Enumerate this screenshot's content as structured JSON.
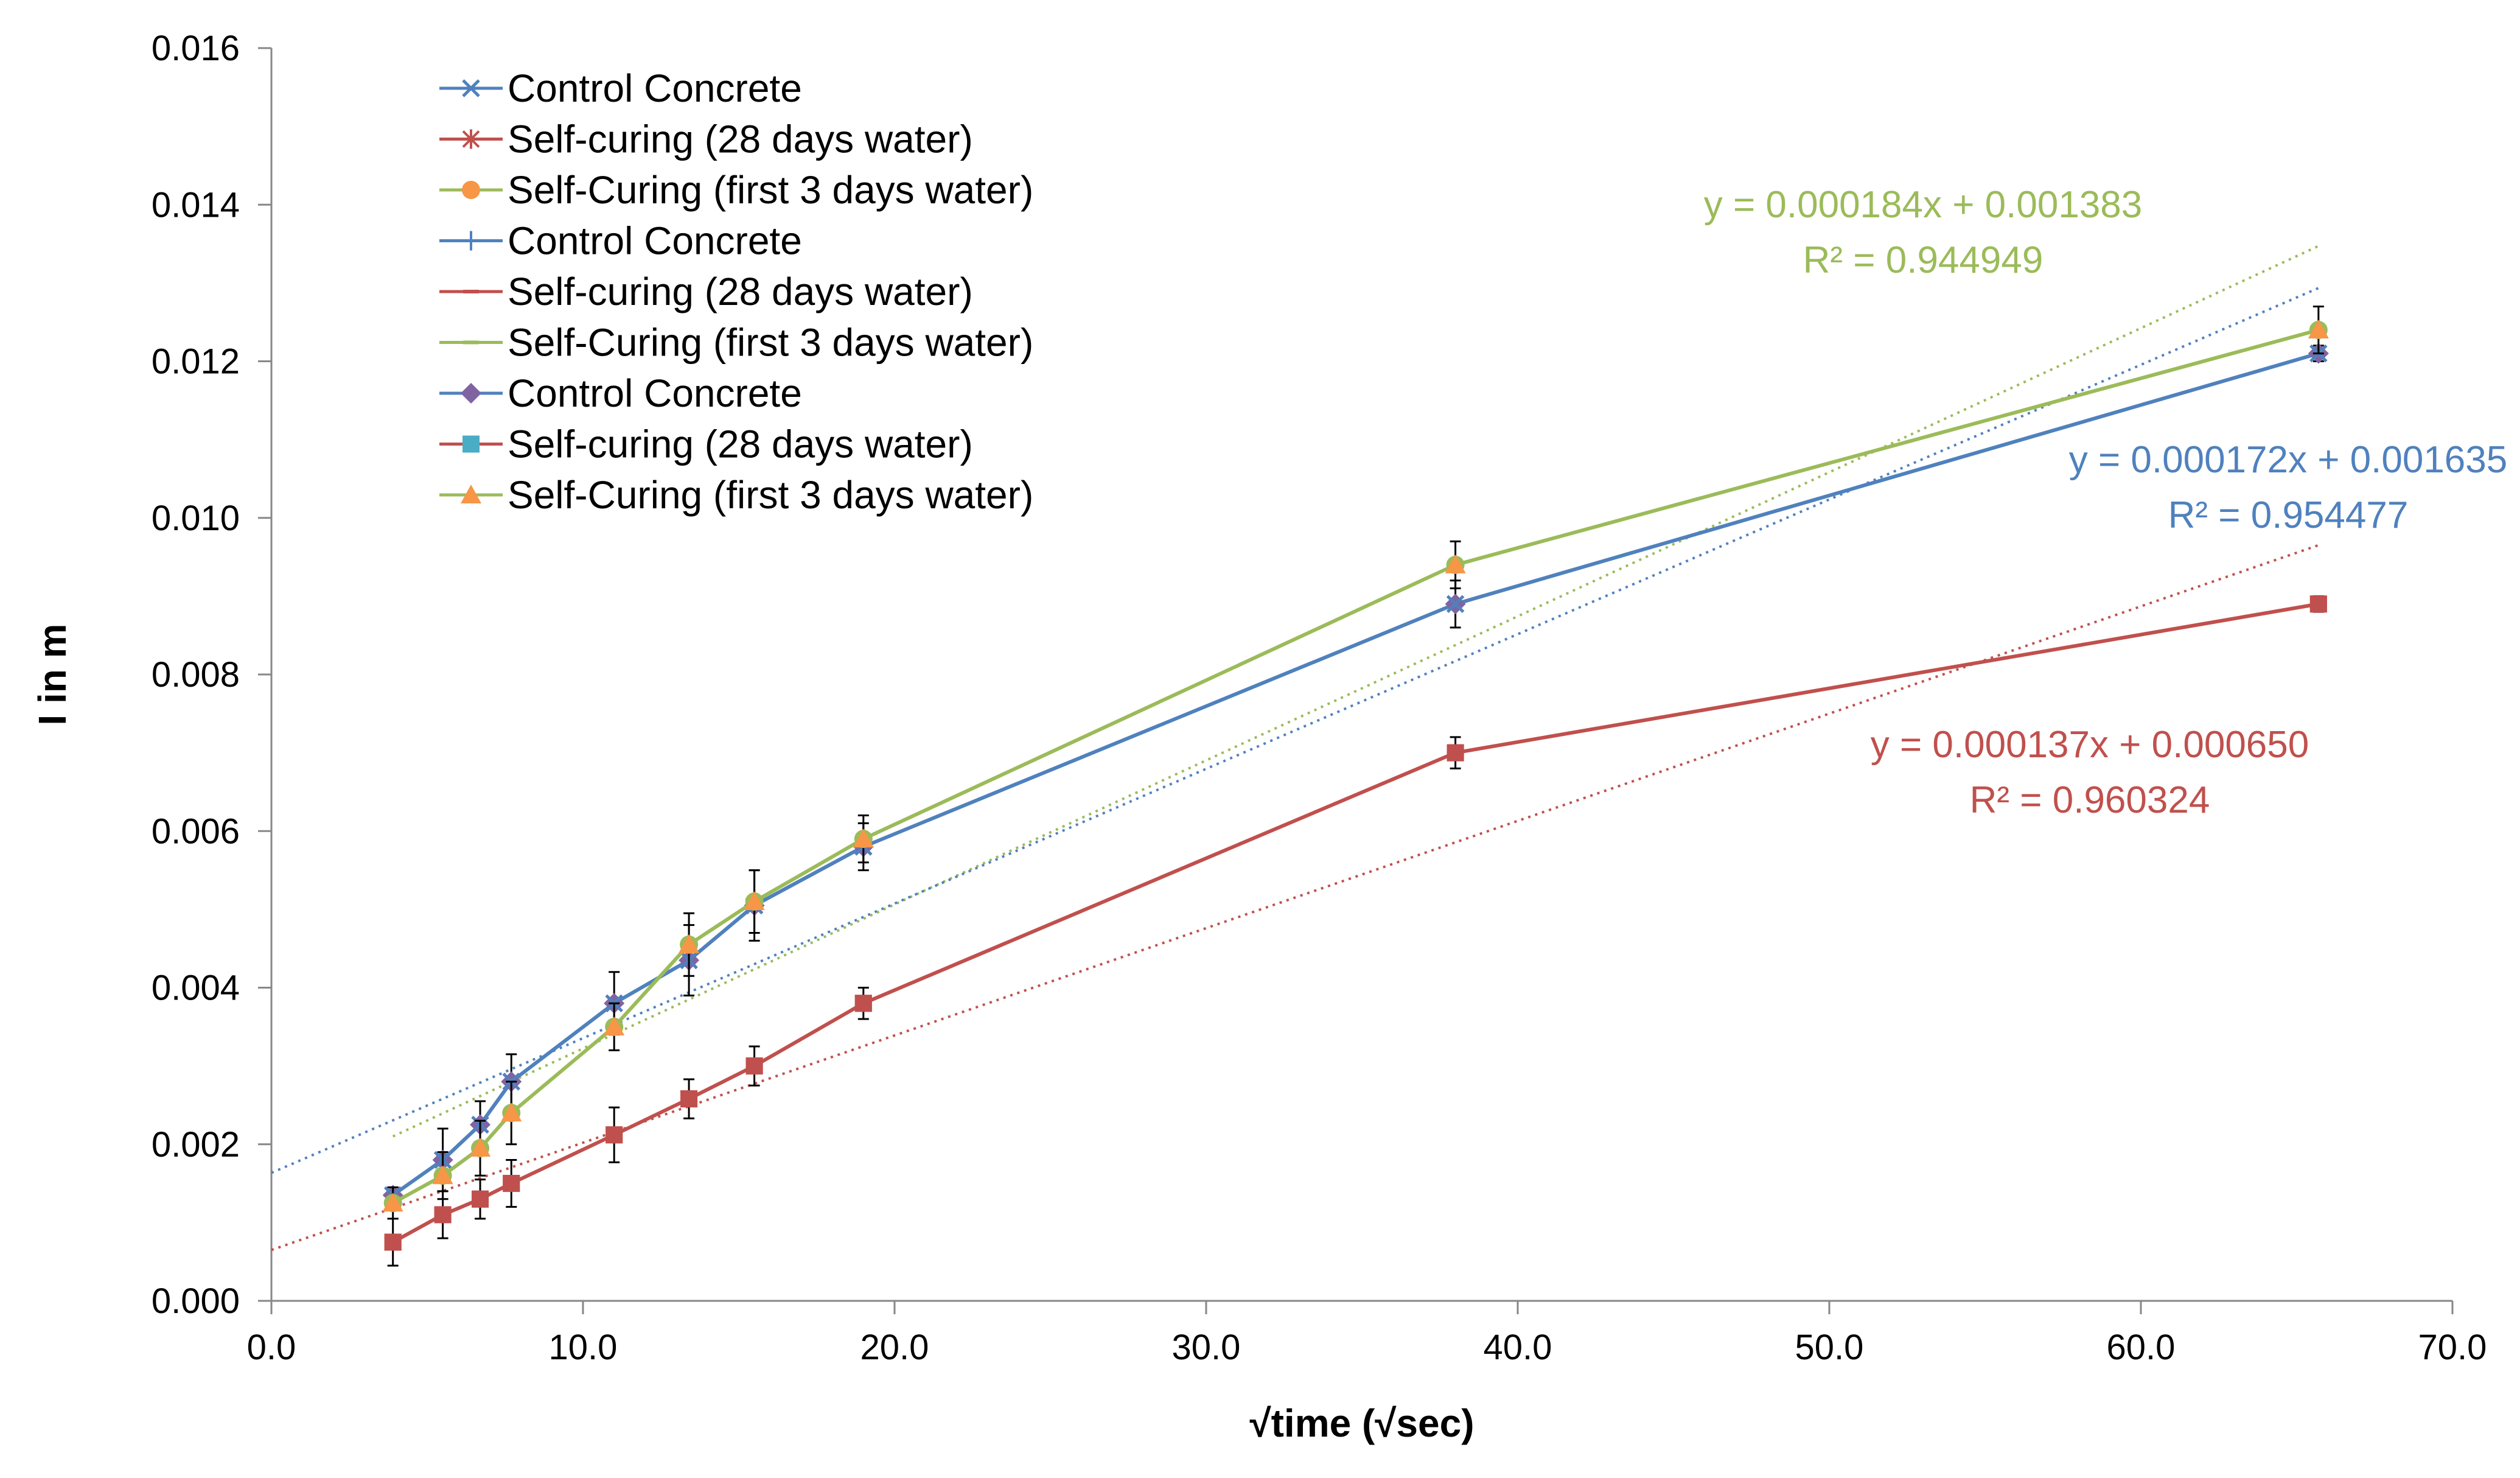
{
  "chart_data": {
    "type": "line",
    "xlabel": "√time (√sec)",
    "ylabel": "I in m",
    "xlim": [
      0,
      70
    ],
    "ylim": [
      0,
      0.016
    ],
    "x_ticks": [
      "0.0",
      "10.0",
      "20.0",
      "30.0",
      "40.0",
      "50.0",
      "60.0",
      "70.0"
    ],
    "y_ticks": [
      "0.000",
      "0.002",
      "0.004",
      "0.006",
      "0.008",
      "0.010",
      "0.012",
      "0.014",
      "0.016"
    ],
    "grid": false,
    "legend_position": "top-left",
    "colors": {
      "blue": "#4f81bd",
      "red": "#c0504d",
      "green": "#9bbb59",
      "orange": "#f79646",
      "purple": "#8064a2",
      "teal": "#4bacc6",
      "errorbar": "#000000"
    },
    "x": [
      3.9,
      5.5,
      6.7,
      7.7,
      11.0,
      13.4,
      15.5,
      19.0,
      38.0,
      65.7
    ],
    "series": [
      {
        "name": "Control Concrete",
        "color": "blue",
        "marker": "x",
        "line": true,
        "values": [
          0.00135,
          0.0018,
          0.00225,
          0.0028,
          0.0038,
          0.00435,
          0.00505,
          0.0058,
          0.0089,
          0.0121
        ],
        "errors": [
          0.0001,
          0.0004,
          0.0003,
          0.00035,
          0.0004,
          0.00045,
          0.00045,
          0.0003,
          0.0003,
          0.0001
        ]
      },
      {
        "name": "Self-curing (28 days water)",
        "color": "red",
        "marker": "star",
        "line": true,
        "values": [
          0.00075,
          0.0011,
          0.0013,
          0.0015,
          0.00212,
          0.00258,
          0.003,
          0.0038,
          0.007,
          0.0089
        ],
        "errors": [
          0.0003,
          0.0003,
          0.00025,
          0.0003,
          0.00035,
          0.00025,
          0.00025,
          0.0002,
          0.0002,
          0.0001
        ]
      },
      {
        "name": "Self-Curing (first 3 days water)",
        "color": "green",
        "marker": "circle",
        "marker_color": "orange",
        "line": true,
        "values": [
          0.00125,
          0.0016,
          0.00195,
          0.0024,
          0.0035,
          0.00455,
          0.0051,
          0.0059,
          0.0094,
          0.0124
        ],
        "errors": [
          0.0002,
          0.0003,
          0.00035,
          0.0004,
          0.0003,
          0.0004,
          0.0004,
          0.0003,
          0.0003,
          0.0003
        ]
      },
      {
        "name": "Control Concrete",
        "color": "blue",
        "marker": "plus",
        "line": true
      },
      {
        "name": "Self-curing (28 days water)",
        "color": "red",
        "marker": "dash",
        "line": true
      },
      {
        "name": "Self-Curing (first 3 days water)",
        "color": "green",
        "marker": "dash",
        "line": true
      },
      {
        "name": "Control Concrete",
        "color": "blue",
        "marker": "diamond",
        "marker_color": "purple",
        "line": true
      },
      {
        "name": "Self-curing (28 days water)",
        "color": "red",
        "marker": "square",
        "marker_color": "teal",
        "line": true
      },
      {
        "name": "Self-Curing (first 3 days water)",
        "color": "green",
        "marker": "triangle",
        "marker_color": "orange",
        "line": true
      }
    ],
    "trendlines": [
      {
        "series_color": "green",
        "slope": 0.000184,
        "intercept": 0.001383,
        "x_range": [
          3.9,
          65.7
        ],
        "equation": "y = 0.000184x + 0.001383",
        "r2": "R² = 0.944949"
      },
      {
        "series_color": "blue",
        "slope": 0.000172,
        "intercept": 0.001635,
        "x_range": [
          0,
          65.7
        ],
        "equation": "y = 0.000172x + 0.001635",
        "r2": "R² = 0.954477"
      },
      {
        "series_color": "red",
        "slope": 0.000137,
        "intercept": 0.00065,
        "x_range": [
          0,
          65.7
        ],
        "equation": "y = 0.000137x + 0.000650",
        "r2": "R² = 0.960324"
      }
    ]
  }
}
